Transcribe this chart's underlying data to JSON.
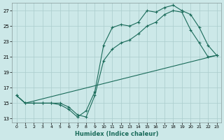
{
  "xlabel": "Humidex (Indice chaleur)",
  "ylabel": "",
  "bg_color": "#cce8e8",
  "line_color": "#1a6b5a",
  "grid_color": "#aacccc",
  "xlim": [
    -0.5,
    23.5
  ],
  "ylim": [
    12.5,
    28.0
  ],
  "xticks": [
    0,
    1,
    2,
    3,
    4,
    5,
    6,
    7,
    8,
    9,
    10,
    11,
    12,
    13,
    14,
    15,
    16,
    17,
    18,
    19,
    20,
    21,
    22,
    23
  ],
  "yticks": [
    13,
    15,
    17,
    19,
    21,
    23,
    25,
    27
  ],
  "series1_x": [
    0,
    1,
    2,
    3,
    4,
    5,
    6,
    7,
    8,
    9,
    10,
    11,
    12,
    13,
    14,
    15,
    16,
    17,
    18,
    19,
    20,
    21,
    22,
    23
  ],
  "series1_y": [
    16.0,
    15.0,
    15.0,
    15.0,
    15.0,
    14.8,
    14.2,
    13.2,
    14.0,
    16.5,
    22.5,
    24.8,
    25.2,
    25.0,
    25.5,
    27.0,
    26.8,
    27.4,
    27.7,
    27.0,
    26.5,
    24.8,
    22.5,
    21.2
  ],
  "series2_x": [
    0,
    1,
    2,
    3,
    4,
    5,
    6,
    7,
    8,
    9,
    10,
    11,
    12,
    13,
    14,
    15,
    16,
    17,
    18,
    19,
    20,
    21,
    22,
    23
  ],
  "series2_y": [
    16.0,
    15.0,
    15.0,
    15.0,
    15.0,
    15.0,
    14.5,
    13.5,
    13.2,
    16.0,
    20.5,
    22.0,
    22.8,
    23.2,
    24.0,
    25.0,
    25.5,
    26.5,
    27.0,
    26.8,
    24.5,
    22.8,
    21.0,
    21.2
  ],
  "series3_x": [
    0,
    1,
    23
  ],
  "series3_y": [
    16.0,
    15.0,
    21.2
  ]
}
